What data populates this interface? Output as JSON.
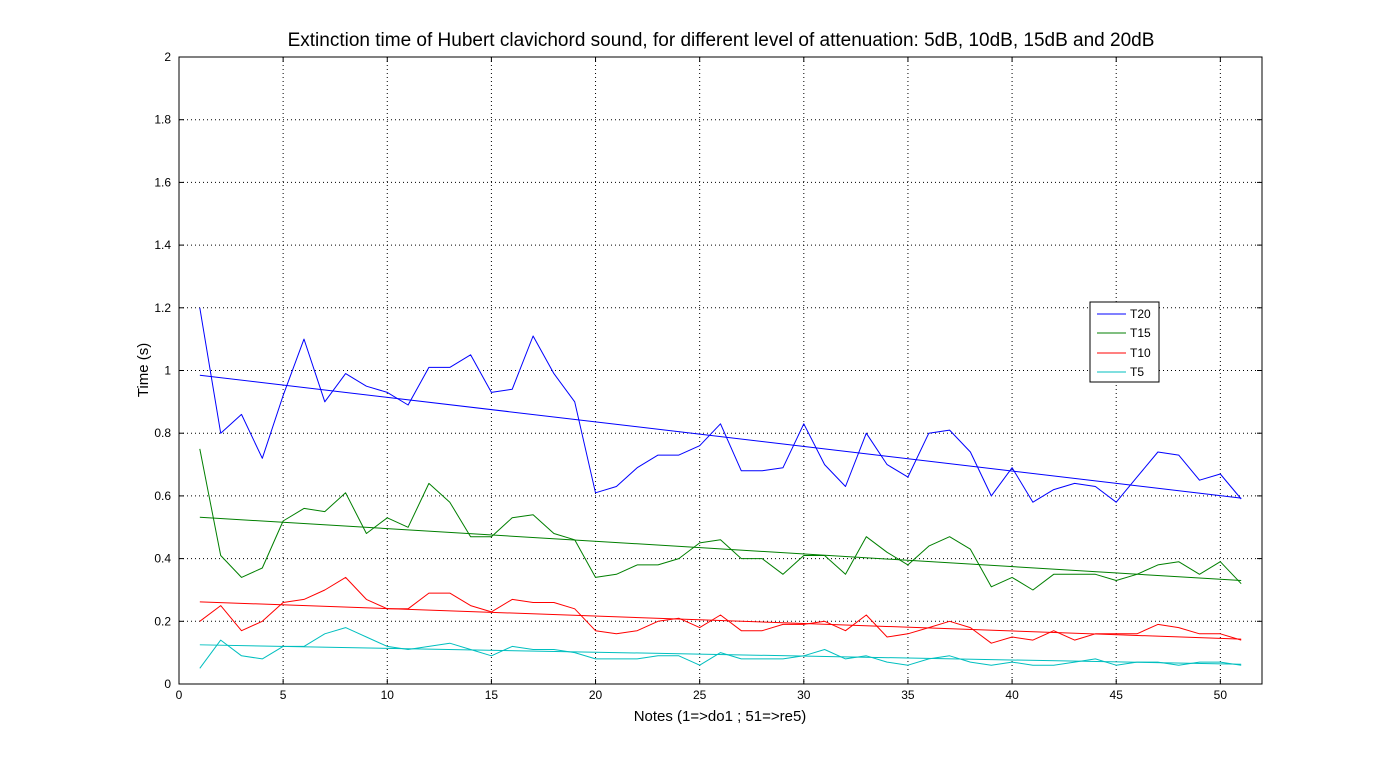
{
  "chart_data": {
    "type": "line",
    "title": "Extinction time of Hubert clavichord sound, for different level of attenuation: 5dB, 10dB, 15dB and 20dB",
    "xlabel": "Notes (1=>do1 ; 51=>re5)",
    "ylabel": "Time (s)",
    "xlim": [
      0,
      52
    ],
    "ylim": [
      0,
      2
    ],
    "xticks": [
      0,
      5,
      10,
      15,
      20,
      25,
      30,
      35,
      40,
      45,
      50
    ],
    "yticks": [
      0,
      0.2,
      0.4,
      0.6,
      0.8,
      1,
      1.2,
      1.4,
      1.6,
      1.8,
      2
    ],
    "xtick_labels": [
      "0",
      "5",
      "10",
      "15",
      "20",
      "25",
      "30",
      "35",
      "40",
      "45",
      "50"
    ],
    "ytick_labels": [
      "0",
      "0.2",
      "0.4",
      "0.6",
      "0.8",
      "1",
      "1.2",
      "1.4",
      "1.6",
      "1.8",
      "2"
    ],
    "grid": true,
    "legend_position": "right",
    "x": [
      1,
      2,
      3,
      4,
      5,
      6,
      7,
      8,
      9,
      10,
      11,
      12,
      13,
      14,
      15,
      16,
      17,
      18,
      19,
      20,
      21,
      22,
      23,
      24,
      25,
      26,
      27,
      28,
      29,
      30,
      31,
      32,
      33,
      34,
      35,
      36,
      37,
      38,
      39,
      40,
      41,
      42,
      43,
      44,
      45,
      46,
      47,
      48,
      49,
      50,
      51
    ],
    "series": [
      {
        "name": "T20",
        "color": "#0000ff",
        "values": [
          1.2,
          0.8,
          0.86,
          0.72,
          0.92,
          1.1,
          0.9,
          0.99,
          0.95,
          0.93,
          0.89,
          1.01,
          1.01,
          1.05,
          0.93,
          0.94,
          1.11,
          0.99,
          0.9,
          0.61,
          0.63,
          0.69,
          0.73,
          0.73,
          0.76,
          0.83,
          0.68,
          0.68,
          0.69,
          0.83,
          0.7,
          0.63,
          0.8,
          0.7,
          0.66,
          0.8,
          0.81,
          0.74,
          0.6,
          0.69,
          0.58,
          0.62,
          0.64,
          0.63,
          0.58,
          0.66,
          0.74,
          0.73,
          0.65,
          0.67,
          0.59
        ],
        "trend": [
          0.985,
          0.593
        ]
      },
      {
        "name": "T15",
        "color": "#007f00",
        "values": [
          0.75,
          0.41,
          0.34,
          0.37,
          0.52,
          0.56,
          0.55,
          0.61,
          0.48,
          0.53,
          0.5,
          0.64,
          0.58,
          0.47,
          0.47,
          0.53,
          0.54,
          0.48,
          0.46,
          0.34,
          0.35,
          0.38,
          0.38,
          0.4,
          0.45,
          0.46,
          0.4,
          0.4,
          0.35,
          0.41,
          0.41,
          0.35,
          0.47,
          0.42,
          0.38,
          0.44,
          0.47,
          0.43,
          0.31,
          0.34,
          0.3,
          0.35,
          0.35,
          0.35,
          0.33,
          0.35,
          0.38,
          0.39,
          0.35,
          0.39,
          0.32
        ],
        "trend": [
          0.532,
          0.33
        ]
      },
      {
        "name": "T10",
        "color": "#ff0000",
        "values": [
          0.2,
          0.25,
          0.17,
          0.2,
          0.26,
          0.27,
          0.3,
          0.34,
          0.27,
          0.24,
          0.24,
          0.29,
          0.29,
          0.25,
          0.23,
          0.27,
          0.26,
          0.26,
          0.24,
          0.17,
          0.16,
          0.17,
          0.2,
          0.21,
          0.18,
          0.22,
          0.17,
          0.17,
          0.19,
          0.19,
          0.2,
          0.17,
          0.22,
          0.15,
          0.16,
          0.18,
          0.2,
          0.18,
          0.13,
          0.15,
          0.14,
          0.17,
          0.14,
          0.16,
          0.16,
          0.16,
          0.19,
          0.18,
          0.16,
          0.16,
          0.14
        ],
        "trend": [
          0.262,
          0.143
        ]
      },
      {
        "name": "T5",
        "color": "#00bfbf",
        "values": [
          0.05,
          0.14,
          0.09,
          0.08,
          0.12,
          0.12,
          0.16,
          0.18,
          0.15,
          0.12,
          0.11,
          0.12,
          0.13,
          0.11,
          0.09,
          0.12,
          0.11,
          0.11,
          0.1,
          0.08,
          0.08,
          0.08,
          0.09,
          0.09,
          0.06,
          0.1,
          0.08,
          0.08,
          0.08,
          0.09,
          0.11,
          0.08,
          0.09,
          0.07,
          0.06,
          0.08,
          0.09,
          0.07,
          0.06,
          0.07,
          0.06,
          0.06,
          0.07,
          0.08,
          0.06,
          0.07,
          0.07,
          0.06,
          0.07,
          0.07,
          0.06
        ],
        "trend": [
          0.125,
          0.063
        ]
      }
    ]
  }
}
